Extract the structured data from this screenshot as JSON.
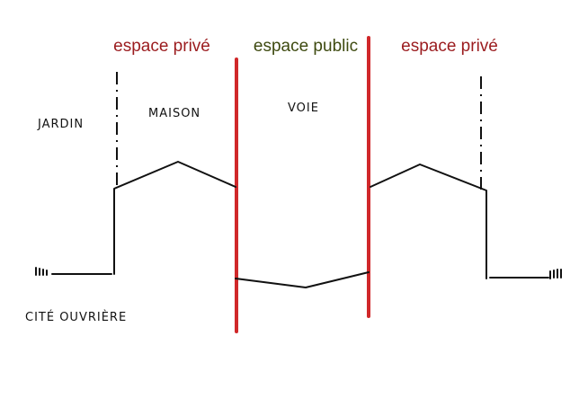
{
  "zones": [
    {
      "label": "espace privé"
    },
    {
      "label": "espace public"
    },
    {
      "label": "espace privé"
    }
  ],
  "annotations": {
    "garden": "JARDIN",
    "house": "MAISON",
    "road": "VOIE",
    "caption": "CITÉ OUVRIÈRE"
  }
}
